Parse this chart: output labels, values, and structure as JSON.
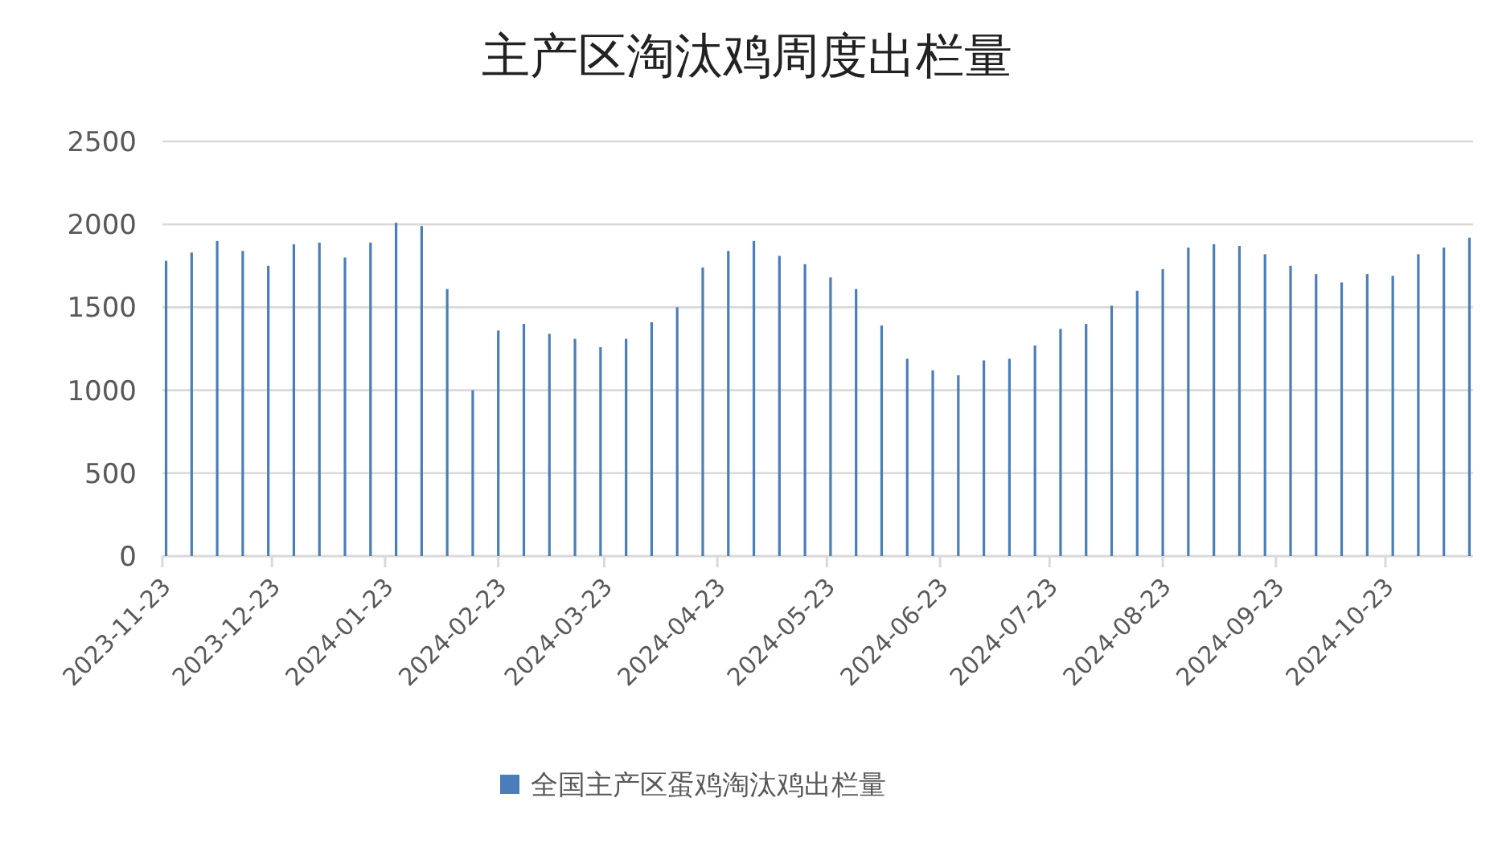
{
  "chart_data": {
    "type": "bar",
    "title": "主产区淘汰鸡周度出栏量",
    "x": [
      "2023-11-24",
      "2023-12-01",
      "2023-12-08",
      "2023-12-15",
      "2023-12-22",
      "2023-12-29",
      "2024-01-05",
      "2024-01-12",
      "2024-01-19",
      "2024-01-26",
      "2024-02-02",
      "2024-02-09",
      "2024-02-16",
      "2024-02-23",
      "2024-03-01",
      "2024-03-08",
      "2024-03-15",
      "2024-03-22",
      "2024-03-29",
      "2024-04-05",
      "2024-04-12",
      "2024-04-19",
      "2024-04-26",
      "2024-05-03",
      "2024-05-10",
      "2024-05-17",
      "2024-05-24",
      "2024-05-31",
      "2024-06-07",
      "2024-06-14",
      "2024-06-21",
      "2024-06-28",
      "2024-07-05",
      "2024-07-12",
      "2024-07-19",
      "2024-07-26",
      "2024-08-02",
      "2024-08-09",
      "2024-08-16",
      "2024-08-23",
      "2024-08-30",
      "2024-09-06",
      "2024-09-13",
      "2024-09-20",
      "2024-09-27",
      "2024-10-04",
      "2024-10-11",
      "2024-10-18",
      "2024-10-25",
      "2024-11-01",
      "2024-11-08",
      "2024-11-15"
    ],
    "series": [
      {
        "name": "全国主产区蛋鸡淘汰鸡出栏量",
        "color": "#4a7ebb",
        "values": [
          1780,
          1830,
          1900,
          1840,
          1750,
          1880,
          1890,
          1800,
          1890,
          2010,
          1990,
          1610,
          1000,
          1360,
          1400,
          1340,
          1310,
          1260,
          1310,
          1410,
          1500,
          1740,
          1840,
          1900,
          1810,
          1760,
          1680,
          1610,
          1390,
          1190,
          1120,
          1090,
          1180,
          1190,
          1270,
          1370,
          1400,
          1510,
          1600,
          1730,
          1860,
          1880,
          1870,
          1820,
          1750,
          1700,
          1650,
          1700,
          1690,
          1820,
          1860,
          1920
        ]
      }
    ],
    "xlim": [
      "2023-11-23",
      "2024-11-16"
    ],
    "xticks": [
      "2023-11-23",
      "2023-12-23",
      "2024-01-23",
      "2024-02-23",
      "2024-03-23",
      "2024-04-23",
      "2024-05-23",
      "2024-06-23",
      "2024-07-23",
      "2024-08-23",
      "2024-09-23",
      "2024-10-23"
    ],
    "ylim": [
      0,
      2500
    ],
    "yticks": [
      0,
      500,
      1000,
      1500,
      2000,
      2500
    ],
    "grid": "y",
    "legend": "bottom"
  }
}
